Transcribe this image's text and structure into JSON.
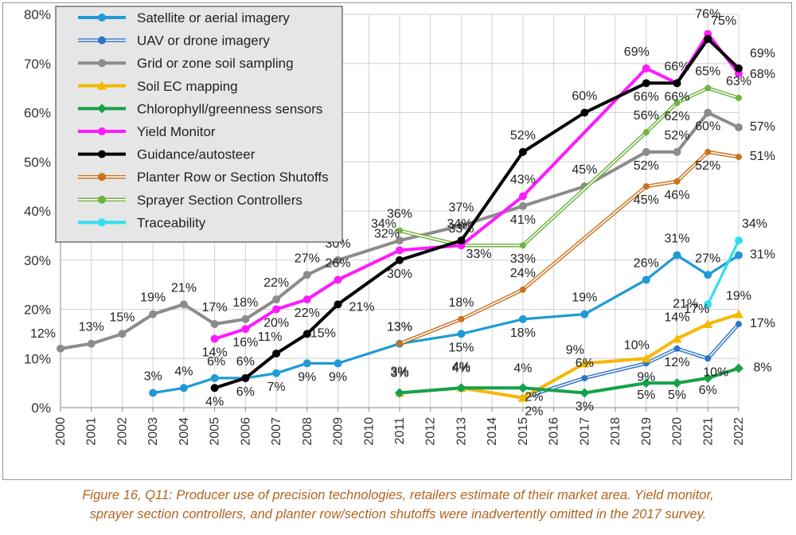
{
  "chart_data": {
    "type": "line",
    "title": "",
    "xlabel": "",
    "ylabel": "",
    "ylim": [
      0,
      80
    ],
    "ytick_labels": [
      "0%",
      "10%",
      "20%",
      "30%",
      "40%",
      "50%",
      "60%",
      "70%",
      "80%"
    ],
    "x": [
      "2000",
      "2001",
      "2002",
      "2003",
      "2004",
      "2005",
      "2006",
      "2007",
      "2008",
      "2009",
      "2010",
      "2011",
      "2012",
      "2013",
      "2014",
      "2015",
      "2016",
      "2017",
      "2018",
      "2019",
      "2020",
      "2021",
      "2022"
    ],
    "grid": true,
    "legend_position": "top-left",
    "series": [
      {
        "name": "Satellite or aerial imagery",
        "color": "#1f9ad6",
        "style": "solid",
        "points": [
          [
            2003,
            3
          ],
          [
            2004,
            4
          ],
          [
            2005,
            6
          ],
          [
            2006,
            6
          ],
          [
            2007,
            7
          ],
          [
            2008,
            9
          ],
          [
            2009,
            9
          ],
          [
            2011,
            13
          ],
          [
            2013,
            15
          ],
          [
            2015,
            18
          ],
          [
            2017,
            19
          ],
          [
            2019,
            26
          ],
          [
            2020,
            31
          ],
          [
            2021,
            27
          ],
          [
            2022,
            31
          ]
        ],
        "labels": [
          "3%",
          "4%",
          "6%",
          "6%",
          "7%",
          "9%",
          "9%",
          "13%",
          "15%",
          "18%",
          "19%",
          "26%",
          "31%",
          "27%",
          "31%"
        ]
      },
      {
        "name": "UAV or drone imagery",
        "color": "#2e75c8",
        "style": "double",
        "points": [
          [
            2015,
            2
          ],
          [
            2017,
            6
          ],
          [
            2019,
            9
          ],
          [
            2020,
            12
          ],
          [
            2021,
            10
          ],
          [
            2022,
            17
          ]
        ],
        "labels": [
          "2%",
          "6%",
          "9%",
          "12%",
          "10%",
          "17%"
        ]
      },
      {
        "name": "Grid or zone soil sampling",
        "color": "#8c8c8c",
        "style": "solid",
        "points": [
          [
            2000,
            12
          ],
          [
            2001,
            13
          ],
          [
            2002,
            15
          ],
          [
            2003,
            19
          ],
          [
            2004,
            21
          ],
          [
            2005,
            17
          ],
          [
            2006,
            18
          ],
          [
            2007,
            22
          ],
          [
            2008,
            27
          ],
          [
            2009,
            30
          ],
          [
            2011,
            34
          ],
          [
            2013,
            37
          ],
          [
            2015,
            41
          ],
          [
            2017,
            45
          ],
          [
            2019,
            52
          ],
          [
            2020,
            52
          ],
          [
            2021,
            60
          ],
          [
            2022,
            57
          ]
        ],
        "labels": [
          "12%",
          "13%",
          "15%",
          "19%",
          "21%",
          "17%",
          "18%",
          "22%",
          "27%",
          "30%",
          "34%",
          "37%",
          "41%",
          "45%",
          "52%",
          "52%",
          "60%",
          "57%"
        ]
      },
      {
        "name": "Soil EC mapping",
        "color": "#f5b800",
        "style": "solid",
        "points": [
          [
            2011,
            3
          ],
          [
            2013,
            4
          ],
          [
            2015,
            2
          ],
          [
            2017,
            9
          ],
          [
            2019,
            10
          ],
          [
            2020,
            14
          ],
          [
            2021,
            17
          ],
          [
            2022,
            19
          ]
        ],
        "labels": [
          "3%",
          "4%",
          "2%",
          "9%",
          "10%",
          "14%",
          "17%",
          "19%"
        ]
      },
      {
        "name": "Chlorophyll/greenness sensors",
        "color": "#15a24a",
        "style": "solid",
        "points": [
          [
            2011,
            3
          ],
          [
            2013,
            4
          ],
          [
            2015,
            4
          ],
          [
            2017,
            3
          ],
          [
            2019,
            5
          ],
          [
            2020,
            5
          ],
          [
            2021,
            6
          ],
          [
            2022,
            8
          ]
        ],
        "labels": [
          "3%",
          "4%",
          "4%",
          "3%",
          "5%",
          "5%",
          "6%",
          "8%"
        ]
      },
      {
        "name": "Yield Monitor",
        "color": "#ff1aff",
        "style": "solid",
        "points": [
          [
            2005,
            14
          ],
          [
            2006,
            16
          ],
          [
            2007,
            20
          ],
          [
            2008,
            22
          ],
          [
            2009,
            26
          ],
          [
            2011,
            32
          ],
          [
            2013,
            33
          ],
          [
            2015,
            43
          ],
          [
            2019,
            69
          ],
          [
            2020,
            66
          ],
          [
            2021,
            76
          ],
          [
            2022,
            68
          ]
        ],
        "labels": [
          "14%",
          "16%",
          "20%",
          "22%",
          "26%",
          "32%",
          "33%",
          "43%",
          "69%",
          "66%",
          "76%",
          "68%"
        ]
      },
      {
        "name": "Guidance/autosteer",
        "color": "#000000",
        "style": "solid",
        "points": [
          [
            2005,
            4
          ],
          [
            2006,
            6
          ],
          [
            2007,
            11
          ],
          [
            2008,
            15
          ],
          [
            2009,
            21
          ],
          [
            2011,
            30
          ],
          [
            2013,
            34
          ],
          [
            2015,
            52
          ],
          [
            2017,
            60
          ],
          [
            2019,
            66
          ],
          [
            2020,
            66
          ],
          [
            2021,
            75
          ],
          [
            2022,
            69
          ]
        ],
        "labels": [
          "4%",
          "6%",
          "11%",
          "15%",
          "21%",
          "30%",
          "34%",
          "52%",
          "60%",
          "66%",
          "66%",
          "75%",
          "69%"
        ]
      },
      {
        "name": "Planter Row or Section Shutoffs",
        "color": "#c8731e",
        "style": "double",
        "points": [
          [
            2011,
            13
          ],
          [
            2013,
            18
          ],
          [
            2015,
            24
          ],
          [
            2019,
            45
          ],
          [
            2020,
            46
          ],
          [
            2021,
            52
          ],
          [
            2022,
            51
          ]
        ],
        "labels": [
          "13%",
          "18%",
          "24%",
          "45%",
          "46%",
          "52%",
          "51%"
        ]
      },
      {
        "name": "Sprayer Section Controllers",
        "color": "#6db33f",
        "style": "double",
        "points": [
          [
            2011,
            36
          ],
          [
            2013,
            33
          ],
          [
            2015,
            33
          ],
          [
            2019,
            56
          ],
          [
            2020,
            62
          ],
          [
            2021,
            65
          ],
          [
            2022,
            63
          ]
        ],
        "labels": [
          "36%",
          "33%",
          "33%",
          "56%",
          "62%",
          "65%",
          "63%"
        ]
      },
      {
        "name": "Traceability",
        "color": "#33ddf0",
        "style": "solid",
        "points": [
          [
            2021,
            21
          ],
          [
            2022,
            34
          ]
        ],
        "labels": [
          "21%",
          "34%"
        ]
      }
    ]
  },
  "caption": {
    "line1": "Figure 16, Q11: Producer use of precision technologies, retailers estimate of their market area.  Yield monitor,",
    "line2": "sprayer section controllers, and planter row/section shutoffs were inadvertently omitted in the 2017 survey."
  }
}
